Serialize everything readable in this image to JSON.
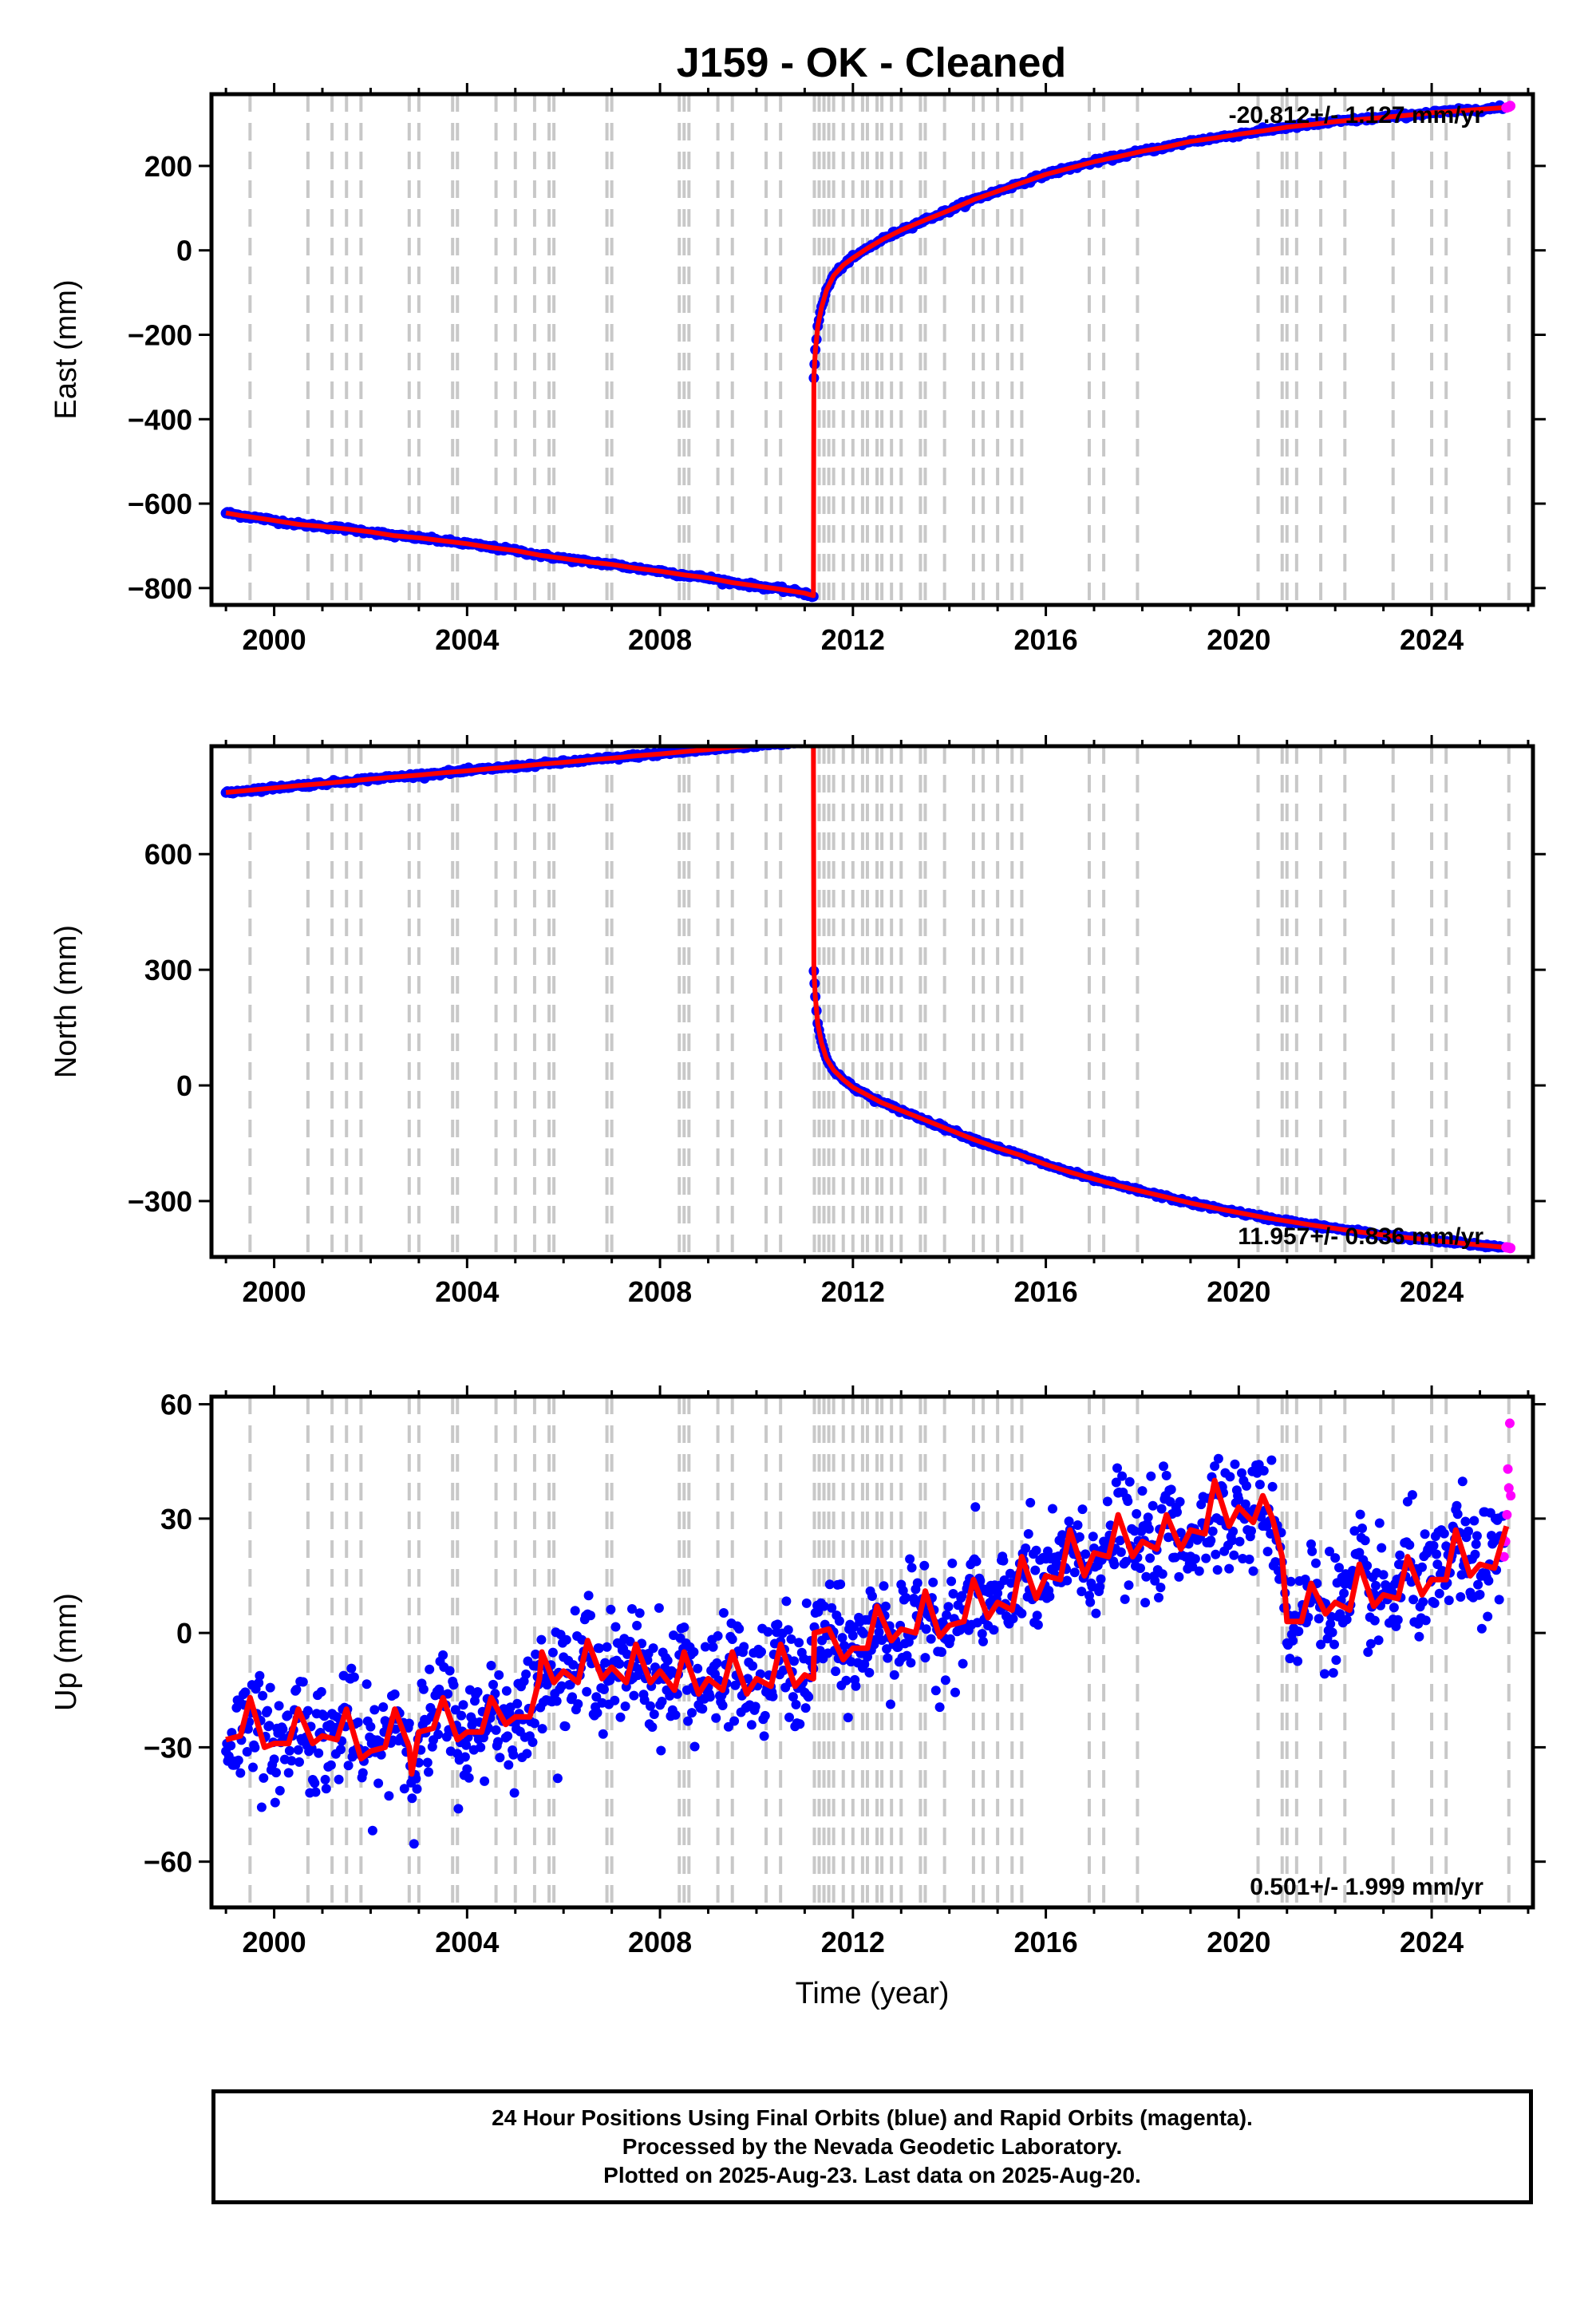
{
  "title": "J159  - OK - Cleaned",
  "colors": {
    "final_orbits": "#0000ff",
    "rapid_orbits": "#ff00ff",
    "model": "#ff0000",
    "event_lines": "#c8c8c8",
    "axis": "#000000"
  },
  "footer": {
    "line1": "24 Hour Positions Using Final Orbits (blue) and Rapid Orbits (magenta).",
    "line2": "Processed by the Nevada Geodetic Laboratory.",
    "line3": "Plotted on 2025-Aug-23. Last data on 2025-Aug-20."
  },
  "chart_data": [
    {
      "type": "scatter",
      "component": "East",
      "ylabel": "East (mm)",
      "xlabel": "",
      "rate_label": "-20.812+/- 1.127 mm/yr",
      "rate_label_position": "top-right",
      "xlim": [
        1998.7,
        2026.1
      ],
      "ylim": [
        -840,
        370
      ],
      "xticks": [
        2000,
        2004,
        2008,
        2012,
        2016,
        2020,
        2024
      ],
      "yticks": [
        -800,
        -600,
        -400,
        -200,
        0,
        200
      ],
      "grid": false,
      "event_lines": [
        1999.5,
        2000.7,
        2001.2,
        2001.5,
        2001.8,
        2002.8,
        2003.0,
        2003.7,
        2003.8,
        2004.6,
        2005.0,
        2005.4,
        2005.7,
        2005.8,
        2006.9,
        2007.0,
        2008.4,
        2008.5,
        2008.6,
        2009.2,
        2009.5,
        2010.2,
        2010.5,
        2011.2,
        2011.3,
        2011.4,
        2011.5,
        2011.6,
        2011.8,
        2012.0,
        2012.2,
        2012.3,
        2012.5,
        2012.6,
        2012.8,
        2013.0,
        2013.4,
        2013.5,
        2013.9,
        2014.5,
        2014.7,
        2015.0,
        2015.3,
        2015.5,
        2016.9,
        2017.2,
        2017.9,
        2020.4,
        2020.9,
        2021.0,
        2021.2,
        2021.7,
        2022.2,
        2023.2,
        2024.0,
        2024.3,
        2025.6
      ],
      "series": [
        {
          "name": "Final Orbits",
          "x": [
            1999.0,
            1999.3,
            1999.6,
            2000.0,
            2000.5,
            2001.0,
            2001.5,
            2002.0,
            2002.5,
            2003.0,
            2003.5,
            2004.0,
            2004.5,
            2005.0,
            2005.5,
            2006.0,
            2006.5,
            2007.0,
            2007.5,
            2008.0,
            2008.5,
            2009.0,
            2009.5,
            2010.0,
            2010.5,
            2011.0,
            2011.18,
            2011.19,
            2011.22,
            2011.27,
            2011.35,
            2011.45,
            2011.6,
            2011.8,
            2012.0,
            2012.3,
            2012.6,
            2013.0,
            2013.5,
            2014.0,
            2014.5,
            2015.0,
            2015.5,
            2016.0,
            2016.5,
            2017.0,
            2017.5,
            2018.0,
            2018.5,
            2019.0,
            2019.5,
            2020.0,
            2020.5,
            2021.0,
            2021.5,
            2022.0,
            2022.5,
            2023.0,
            2023.5,
            2024.0,
            2024.5,
            2025.0,
            2025.5
          ],
          "y": [
            -622,
            -628,
            -633,
            -640,
            -649,
            -654,
            -660,
            -667,
            -676,
            -681,
            -688,
            -695,
            -704,
            -711,
            -722,
            -730,
            -738,
            -744,
            -753,
            -760,
            -769,
            -776,
            -787,
            -795,
            -803,
            -812,
            -818,
            -300,
            -240,
            -180,
            -135,
            -95,
            -60,
            -35,
            -18,
            5,
            25,
            48,
            72,
            95,
            120,
            140,
            160,
            180,
            195,
            210,
            222,
            235,
            245,
            258,
            266,
            275,
            283,
            292,
            298,
            305,
            310,
            315,
            320,
            326,
            330,
            334,
            338
          ]
        },
        {
          "name": "Rapid Orbits",
          "x": [
            2025.55,
            2025.6,
            2025.63
          ],
          "y": [
            338,
            340,
            342
          ]
        }
      ]
    },
    {
      "type": "scatter",
      "component": "North",
      "ylabel": "North (mm)",
      "xlabel": "",
      "rate_label": "11.957+/- 0.836 mm/yr",
      "rate_label_position": "bottom-right",
      "xlim": [
        1998.7,
        2026.1
      ],
      "ylim": [
        -445,
        880
      ],
      "xticks": [
        2000,
        2004,
        2008,
        2012,
        2016,
        2020,
        2024
      ],
      "yticks": [
        -300,
        0,
        300,
        600
      ],
      "grid": false,
      "event_lines": [
        1999.5,
        2000.7,
        2001.2,
        2001.5,
        2001.8,
        2002.8,
        2003.0,
        2003.7,
        2003.8,
        2004.6,
        2005.0,
        2005.4,
        2005.7,
        2005.8,
        2006.9,
        2007.0,
        2008.4,
        2008.5,
        2008.6,
        2009.2,
        2009.5,
        2010.2,
        2010.5,
        2011.2,
        2011.3,
        2011.4,
        2011.5,
        2011.6,
        2011.8,
        2012.0,
        2012.2,
        2012.3,
        2012.5,
        2012.6,
        2012.8,
        2013.0,
        2013.4,
        2013.5,
        2013.9,
        2014.5,
        2014.7,
        2015.0,
        2015.3,
        2015.5,
        2016.9,
        2017.2,
        2017.9,
        2020.4,
        2020.9,
        2021.0,
        2021.2,
        2021.7,
        2022.2,
        2023.2,
        2024.0,
        2024.3,
        2025.6
      ],
      "series": [
        {
          "name": "Final Orbits",
          "x": [
            1999.0,
            1999.5,
            2000.0,
            2000.5,
            2001.0,
            2001.5,
            2002.0,
            2002.5,
            2003.0,
            2003.5,
            2004.0,
            2004.5,
            2005.0,
            2005.5,
            2006.0,
            2006.5,
            2007.0,
            2007.5,
            2008.0,
            2008.5,
            2009.0,
            2009.5,
            2010.0,
            2010.5,
            2011.0,
            2011.18,
            2011.19,
            2011.22,
            2011.27,
            2011.35,
            2011.45,
            2011.6,
            2011.8,
            2012.0,
            2012.3,
            2012.6,
            2013.0,
            2013.5,
            2014.0,
            2014.5,
            2015.0,
            2015.5,
            2016.0,
            2016.5,
            2017.0,
            2017.5,
            2018.0,
            2018.5,
            2019.0,
            2019.5,
            2020.0,
            2020.5,
            2021.0,
            2021.5,
            2022.0,
            2022.5,
            2023.0,
            2023.5,
            2024.0,
            2024.5,
            2025.0,
            2025.5
          ],
          "y": [
            760,
            766,
            772,
            778,
            783,
            789,
            795,
            800,
            805,
            811,
            816,
            822,
            827,
            833,
            838,
            844,
            849,
            855,
            860,
            866,
            871,
            877,
            882,
            887,
            892,
            895,
            300,
            230,
            160,
            110,
            70,
            40,
            15,
            -5,
            -25,
            -45,
            -65,
            -90,
            -115,
            -140,
            -162,
            -182,
            -205,
            -225,
            -243,
            -260,
            -275,
            -290,
            -305,
            -318,
            -330,
            -342,
            -352,
            -362,
            -371,
            -380,
            -388,
            -395,
            -402,
            -408,
            -414,
            -420
          ]
        },
        {
          "name": "Rapid Orbits",
          "x": [
            2025.55,
            2025.6,
            2025.63
          ],
          "y": [
            -420,
            -421,
            -422
          ]
        }
      ]
    },
    {
      "type": "scatter",
      "component": "Up",
      "ylabel": "Up (mm)",
      "xlabel": "Time (year)",
      "rate_label": "0.501+/- 1.999 mm/yr",
      "rate_label_position": "bottom-right",
      "xlim": [
        1998.7,
        2026.1
      ],
      "ylim": [
        -72,
        62
      ],
      "xticks": [
        2000,
        2004,
        2008,
        2012,
        2016,
        2020,
        2024
      ],
      "yticks": [
        -60,
        -30,
        0,
        30,
        60
      ],
      "grid": false,
      "scatter_spread_mm": 7,
      "event_lines": [
        1999.5,
        2000.7,
        2001.2,
        2001.5,
        2001.8,
        2002.8,
        2003.0,
        2003.7,
        2003.8,
        2004.6,
        2005.0,
        2005.4,
        2005.7,
        2005.8,
        2006.9,
        2007.0,
        2008.4,
        2008.5,
        2008.6,
        2009.2,
        2009.5,
        2010.2,
        2010.5,
        2011.2,
        2011.3,
        2011.4,
        2011.5,
        2011.6,
        2011.8,
        2012.0,
        2012.2,
        2012.3,
        2012.5,
        2012.6,
        2012.8,
        2013.0,
        2013.4,
        2013.5,
        2013.9,
        2014.5,
        2014.7,
        2015.0,
        2015.3,
        2015.5,
        2016.9,
        2017.2,
        2017.9,
        2020.4,
        2020.9,
        2021.0,
        2021.2,
        2021.7,
        2022.2,
        2023.2,
        2024.0,
        2024.3,
        2025.6
      ],
      "series": [
        {
          "name": "Model",
          "x": [
            1999.0,
            1999.3,
            1999.5,
            1999.8,
            2000.0,
            2000.3,
            2000.5,
            2000.8,
            2001.0,
            2001.3,
            2001.5,
            2001.8,
            2002.0,
            2002.3,
            2002.5,
            2002.8,
            2002.85,
            2003.0,
            2003.3,
            2003.5,
            2003.8,
            2004.0,
            2004.3,
            2004.5,
            2004.8,
            2005.0,
            2005.3,
            2005.5,
            2005.55,
            2005.8,
            2006.0,
            2006.3,
            2006.5,
            2006.8,
            2007.0,
            2007.3,
            2007.5,
            2007.8,
            2008.0,
            2008.3,
            2008.5,
            2008.8,
            2009.0,
            2009.3,
            2009.5,
            2009.8,
            2010.0,
            2010.3,
            2010.5,
            2010.8,
            2011.0,
            2011.18,
            2011.2,
            2011.5,
            2011.8,
            2012.0,
            2012.3,
            2012.5,
            2012.8,
            2013.0,
            2013.3,
            2013.5,
            2013.8,
            2014.0,
            2014.3,
            2014.5,
            2014.8,
            2015.0,
            2015.3,
            2015.5,
            2015.8,
            2016.0,
            2016.3,
            2016.5,
            2016.8,
            2017.0,
            2017.3,
            2017.5,
            2017.8,
            2018.0,
            2018.3,
            2018.5,
            2018.8,
            2019.0,
            2019.3,
            2019.5,
            2019.8,
            2020.0,
            2020.3,
            2020.5,
            2020.7,
            2020.9,
            2021.0,
            2021.3,
            2021.5,
            2021.8,
            2022.0,
            2022.3,
            2022.5,
            2022.8,
            2023.0,
            2023.3,
            2023.5,
            2023.8,
            2024.0,
            2024.3,
            2024.5,
            2024.8,
            2025.0,
            2025.3,
            2025.55
          ],
          "y": [
            -28,
            -27,
            -17,
            -30,
            -29,
            -29,
            -20,
            -29,
            -27,
            -28,
            -20,
            -33,
            -31,
            -30,
            -20,
            -30,
            -37,
            -26,
            -25,
            -17,
            -28,
            -26,
            -26,
            -17,
            -24,
            -22,
            -22,
            -12,
            -5,
            -13,
            -10,
            -13,
            -2,
            -12,
            -9,
            -13,
            -3,
            -13,
            -10,
            -15,
            -5,
            -16,
            -12,
            -15,
            -5,
            -16,
            -12,
            -14,
            -3,
            -14,
            -11,
            -12,
            0,
            1,
            -7,
            -4,
            -4,
            7,
            -2,
            1,
            0,
            11,
            -1,
            2,
            3,
            14,
            4,
            8,
            6,
            20,
            9,
            15,
            14,
            27,
            15,
            21,
            20,
            31,
            20,
            24,
            22,
            31,
            22,
            27,
            26,
            40,
            28,
            33,
            29,
            36,
            30,
            20,
            3,
            3,
            13,
            5,
            8,
            6,
            18,
            7,
            10,
            9,
            20,
            10,
            14,
            14,
            27,
            15,
            18,
            17,
            28
          ]
        },
        {
          "name": "Rapid Orbits",
          "x": [
            2025.5,
            2025.53,
            2025.56,
            2025.58,
            2025.6,
            2025.62,
            2025.64
          ],
          "y": [
            20,
            24,
            31,
            43,
            38,
            55,
            36
          ]
        }
      ]
    }
  ]
}
